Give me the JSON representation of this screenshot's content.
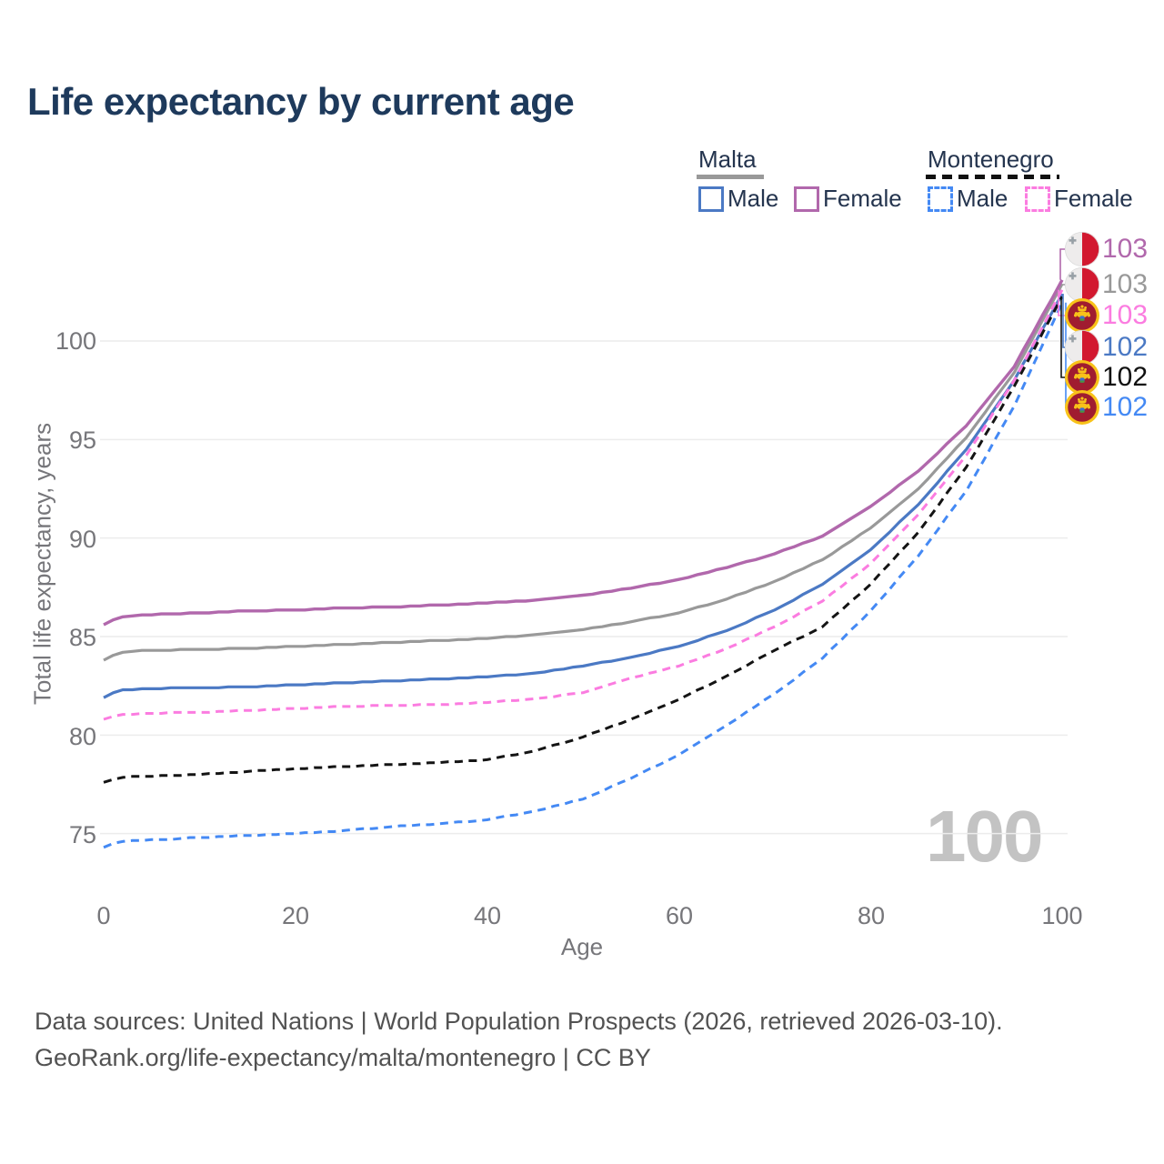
{
  "title": "Life expectancy by current age",
  "legend": {
    "groups": [
      {
        "label": "Malta",
        "line_color": "#999999",
        "line_style": "solid",
        "items": [
          {
            "label": "Male",
            "color": "#4b79c4",
            "style": "solid"
          },
          {
            "label": "Female",
            "color": "#b168ac",
            "style": "solid"
          }
        ]
      },
      {
        "label": "Montenegro",
        "line_color": "#111111",
        "line_style": "dashed",
        "items": [
          {
            "label": "Male",
            "color": "#4489f4",
            "style": "dashed"
          },
          {
            "label": "Female",
            "color": "#fb7ce0",
            "style": "dashed"
          }
        ]
      }
    ]
  },
  "chart_data": {
    "type": "line",
    "title": "Life expectancy by current age",
    "xlabel": "Age",
    "ylabel": "Total life expectancy, years",
    "x_ticks": [
      0,
      20,
      40,
      60,
      80,
      100
    ],
    "y_ticks": [
      100,
      95,
      90,
      85,
      80,
      75
    ],
    "xlim": [
      0,
      100
    ],
    "ylim": [
      73.5,
      104
    ],
    "grid": "horizontal-only",
    "legend_position": "top-right",
    "watermark": "100",
    "series": [
      {
        "id": "malta-female",
        "name": "Malta Female",
        "country": "Malta",
        "sex": "Female",
        "color": "#b168ac",
        "style": "solid",
        "flag": "malta",
        "end_label": "103",
        "points": [
          [
            0,
            85.6
          ],
          [
            1,
            85.85
          ],
          [
            2,
            86.0
          ],
          [
            4,
            86.1
          ],
          [
            10,
            86.2
          ],
          [
            15,
            86.3
          ],
          [
            20,
            86.35
          ],
          [
            25,
            86.45
          ],
          [
            30,
            86.5
          ],
          [
            35,
            86.6
          ],
          [
            40,
            86.7
          ],
          [
            45,
            86.85
          ],
          [
            50,
            87.1
          ],
          [
            55,
            87.45
          ],
          [
            60,
            87.9
          ],
          [
            65,
            88.5
          ],
          [
            70,
            89.2
          ],
          [
            75,
            90.1
          ],
          [
            80,
            91.6
          ],
          [
            85,
            93.4
          ],
          [
            90,
            95.7
          ],
          [
            95,
            98.7
          ],
          [
            100,
            103.1
          ]
        ]
      },
      {
        "id": "malta",
        "name": "Malta",
        "country": "Malta",
        "sex": "All",
        "color": "#999999",
        "style": "solid",
        "flag": "malta",
        "end_label": "103",
        "points": [
          [
            0,
            83.8
          ],
          [
            1,
            84.05
          ],
          [
            2,
            84.2
          ],
          [
            4,
            84.3
          ],
          [
            10,
            84.35
          ],
          [
            15,
            84.4
          ],
          [
            20,
            84.5
          ],
          [
            25,
            84.6
          ],
          [
            30,
            84.7
          ],
          [
            35,
            84.8
          ],
          [
            40,
            84.9
          ],
          [
            45,
            85.1
          ],
          [
            50,
            85.35
          ],
          [
            55,
            85.75
          ],
          [
            60,
            86.2
          ],
          [
            65,
            86.9
          ],
          [
            70,
            87.8
          ],
          [
            75,
            88.9
          ],
          [
            80,
            90.5
          ],
          [
            85,
            92.5
          ],
          [
            90,
            95.1
          ],
          [
            95,
            98.4
          ],
          [
            100,
            102.9
          ]
        ]
      },
      {
        "id": "montenegro-female",
        "name": "Montenegro Female",
        "country": "Montenegro",
        "sex": "Female",
        "color": "#fb7ce0",
        "style": "dashed",
        "flag": "montenegro",
        "end_label": "103",
        "points": [
          [
            0,
            80.8
          ],
          [
            1,
            80.95
          ],
          [
            2,
            81.05
          ],
          [
            4,
            81.1
          ],
          [
            10,
            81.15
          ],
          [
            15,
            81.25
          ],
          [
            20,
            81.35
          ],
          [
            25,
            81.45
          ],
          [
            30,
            81.5
          ],
          [
            35,
            81.55
          ],
          [
            40,
            81.65
          ],
          [
            45,
            81.85
          ],
          [
            50,
            82.15
          ],
          [
            55,
            82.9
          ],
          [
            60,
            83.5
          ],
          [
            65,
            84.4
          ],
          [
            70,
            85.5
          ],
          [
            75,
            86.8
          ],
          [
            80,
            88.7
          ],
          [
            85,
            91.2
          ],
          [
            90,
            94.2
          ],
          [
            95,
            98.0
          ],
          [
            100,
            102.6
          ]
        ]
      },
      {
        "id": "malta-male",
        "name": "Malta Male",
        "country": "Malta",
        "sex": "Male",
        "color": "#4b79c4",
        "style": "solid",
        "flag": "malta",
        "end_label": "102",
        "points": [
          [
            0,
            81.9
          ],
          [
            1,
            82.15
          ],
          [
            2,
            82.3
          ],
          [
            4,
            82.35
          ],
          [
            10,
            82.4
          ],
          [
            15,
            82.45
          ],
          [
            20,
            82.55
          ],
          [
            25,
            82.65
          ],
          [
            30,
            82.75
          ],
          [
            35,
            82.85
          ],
          [
            40,
            82.95
          ],
          [
            45,
            83.15
          ],
          [
            50,
            83.5
          ],
          [
            55,
            83.95
          ],
          [
            60,
            84.5
          ],
          [
            65,
            85.3
          ],
          [
            70,
            86.35
          ],
          [
            75,
            87.65
          ],
          [
            80,
            89.4
          ],
          [
            85,
            91.7
          ],
          [
            90,
            94.5
          ],
          [
            95,
            98.0
          ],
          [
            100,
            102.4
          ]
        ]
      },
      {
        "id": "montenegro",
        "name": "Montenegro",
        "country": "Montenegro",
        "sex": "All",
        "color": "#141414",
        "style": "dashed",
        "flag": "montenegro",
        "end_label": "102",
        "points": [
          [
            0,
            77.6
          ],
          [
            1,
            77.75
          ],
          [
            2,
            77.85
          ],
          [
            4,
            77.9
          ],
          [
            10,
            78.0
          ],
          [
            15,
            78.15
          ],
          [
            20,
            78.3
          ],
          [
            25,
            78.4
          ],
          [
            30,
            78.5
          ],
          [
            35,
            78.6
          ],
          [
            40,
            78.75
          ],
          [
            45,
            79.2
          ],
          [
            50,
            79.9
          ],
          [
            55,
            80.8
          ],
          [
            60,
            81.8
          ],
          [
            65,
            83.0
          ],
          [
            70,
            84.3
          ],
          [
            75,
            85.5
          ],
          [
            80,
            87.65
          ],
          [
            85,
            90.3
          ],
          [
            90,
            93.6
          ],
          [
            95,
            97.7
          ],
          [
            100,
            102.25
          ]
        ]
      },
      {
        "id": "montenegro-male",
        "name": "Montenegro Male",
        "country": "Montenegro",
        "sex": "Male",
        "color": "#4489f4",
        "style": "dashed",
        "flag": "montenegro",
        "end_label": "102",
        "points": [
          [
            0,
            74.3
          ],
          [
            1,
            74.5
          ],
          [
            2,
            74.6
          ],
          [
            4,
            74.65
          ],
          [
            10,
            74.8
          ],
          [
            15,
            74.9
          ],
          [
            20,
            75.0
          ],
          [
            25,
            75.15
          ],
          [
            30,
            75.35
          ],
          [
            35,
            75.5
          ],
          [
            40,
            75.7
          ],
          [
            45,
            76.15
          ],
          [
            50,
            76.75
          ],
          [
            55,
            77.8
          ],
          [
            60,
            79.0
          ],
          [
            65,
            80.5
          ],
          [
            70,
            82.1
          ],
          [
            75,
            83.9
          ],
          [
            80,
            86.3
          ],
          [
            85,
            89.1
          ],
          [
            90,
            92.4
          ],
          [
            95,
            96.7
          ],
          [
            100,
            101.95
          ]
        ]
      }
    ]
  },
  "footer": {
    "line1": "Data sources: United Nations | World Population Prospects (2026, retrieved 2026-03-10).",
    "line2": "GeoRank.org/life-expectancy/malta/montenegro | CC BY"
  }
}
